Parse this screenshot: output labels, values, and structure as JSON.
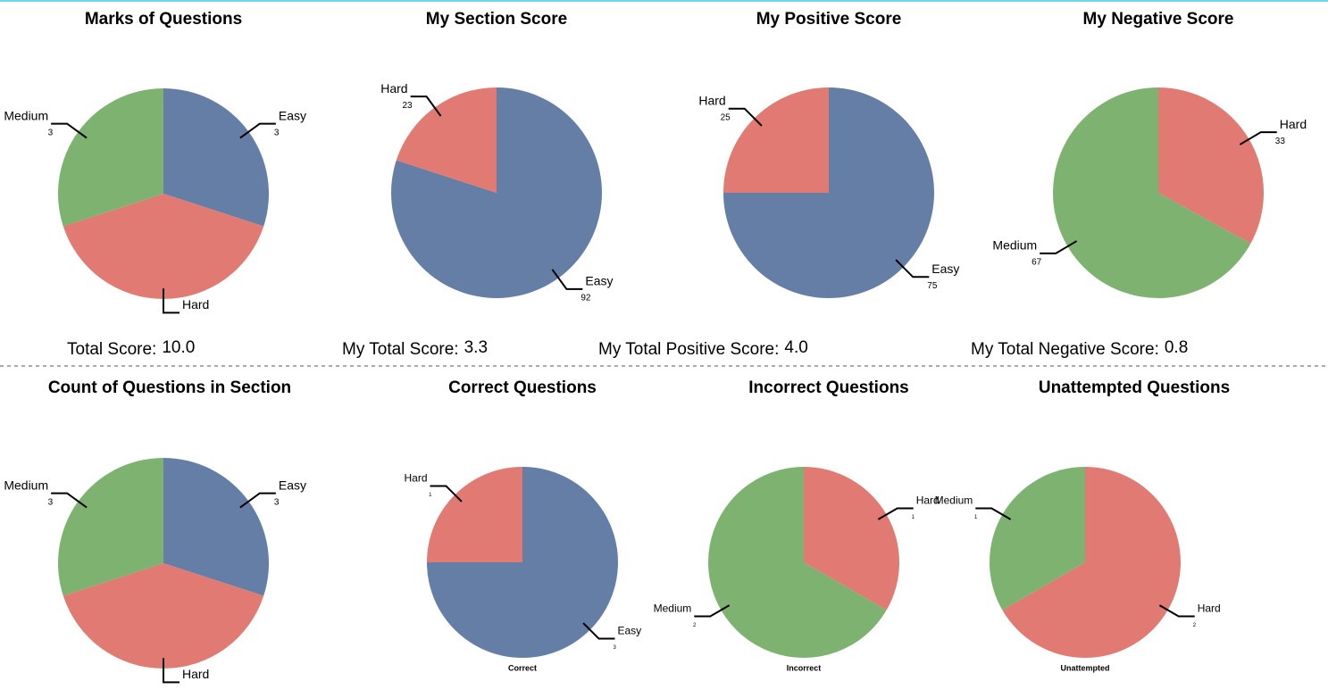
{
  "chart_data": [
    {
      "type": "pie",
      "title": "Marks of Questions",
      "categories": [
        "Easy",
        "Hard",
        "Medium"
      ],
      "values": [
        3,
        4,
        3
      ],
      "value_labels": [
        "3",
        null,
        "3"
      ],
      "colors": [
        "#647ea6",
        "#e07a72",
        "#7eb271"
      ],
      "footer": [
        "Total Score:",
        "10.0"
      ]
    },
    {
      "type": "pie",
      "title": "My Section Score",
      "categories": [
        "Easy",
        "Hard"
      ],
      "values": [
        92,
        23
      ],
      "colors": [
        "#647ea6",
        "#e07a72"
      ],
      "footer": [
        "My Total Score:",
        "3.3"
      ]
    },
    {
      "type": "pie",
      "title": "My Positive Score",
      "categories": [
        "Easy",
        "Hard"
      ],
      "values": [
        75,
        25
      ],
      "colors": [
        "#647ea6",
        "#e07a72"
      ],
      "footer": [
        "My Total Positive Score:",
        "4.0"
      ]
    },
    {
      "type": "pie",
      "title": "My Negative Score",
      "categories": [
        "Hard",
        "Medium"
      ],
      "values": [
        33,
        67
      ],
      "colors": [
        "#e07a72",
        "#7eb271"
      ],
      "footer": [
        "My Total Negative Score:",
        "0.8"
      ]
    },
    {
      "type": "pie",
      "title": "Count of Questions in Section",
      "categories": [
        "Easy",
        "Hard",
        "Medium"
      ],
      "values": [
        3,
        4,
        3
      ],
      "value_labels": [
        "3",
        null,
        "3"
      ],
      "colors": [
        "#647ea6",
        "#e07a72",
        "#7eb271"
      ]
    },
    {
      "type": "pie",
      "title": "Correct Questions",
      "categories": [
        "Easy",
        "Hard"
      ],
      "values": [
        3,
        1
      ],
      "colors": [
        "#647ea6",
        "#e07a72"
      ],
      "caption": "Correct"
    },
    {
      "type": "pie",
      "title": "Incorrect Questions",
      "categories": [
        "Hard",
        "Medium"
      ],
      "values": [
        1,
        2
      ],
      "colors": [
        "#e07a72",
        "#7eb271"
      ],
      "caption": "Incorrect"
    },
    {
      "type": "pie",
      "title": "Unattempted Questions",
      "categories": [
        "Hard",
        "Medium"
      ],
      "values": [
        2,
        1
      ],
      "colors": [
        "#e07a72",
        "#7eb271"
      ],
      "caption": "Unattempted"
    }
  ]
}
